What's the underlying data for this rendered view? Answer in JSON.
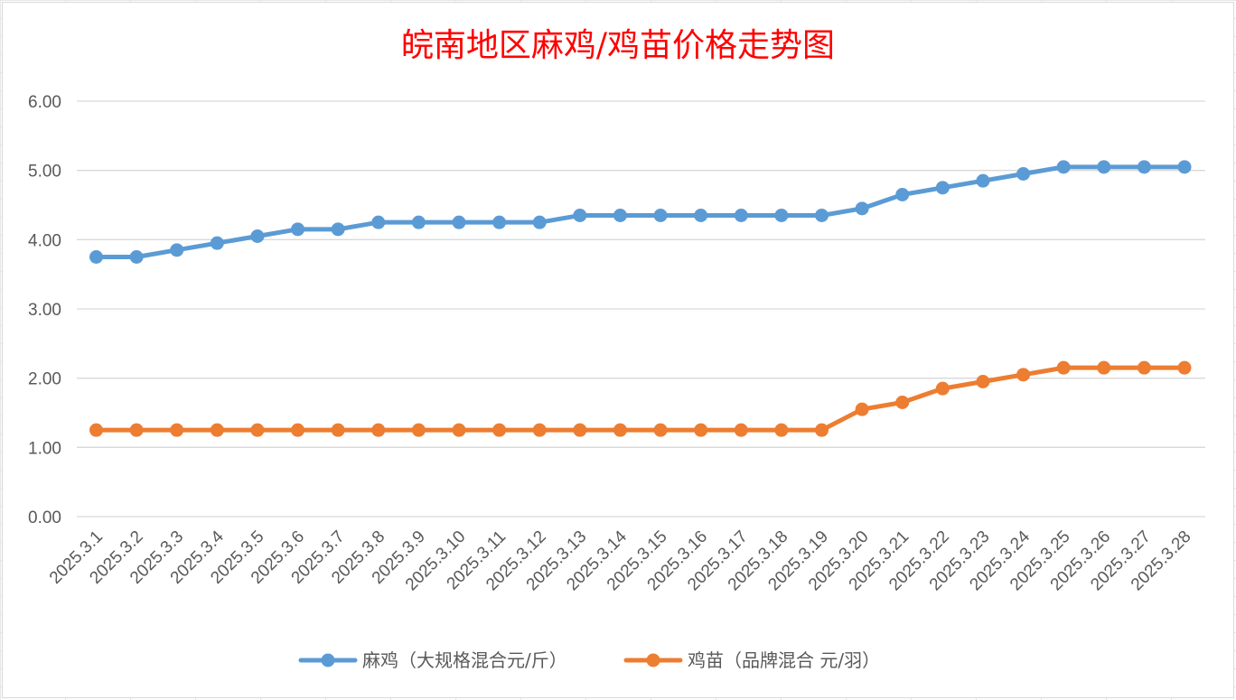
{
  "chart_data": {
    "type": "line",
    "title": "皖南地区麻鸡/鸡苗价格走势图",
    "xlabel": "",
    "ylabel": "",
    "ylim": [
      0,
      6
    ],
    "yticks": [
      "0.00",
      "1.00",
      "2.00",
      "3.00",
      "4.00",
      "5.00",
      "6.00"
    ],
    "grid": true,
    "legend_position": "bottom",
    "categories": [
      "2025.3.1",
      "2025.3.2",
      "2025.3.3",
      "2025.3.4",
      "2025.3.5",
      "2025.3.6",
      "2025.3.7",
      "2025.3.8",
      "2025.3.9",
      "2025.3.10",
      "2025.3.11",
      "2025.3.12",
      "2025.3.13",
      "2025.3.14",
      "2025.3.15",
      "2025.3.16",
      "2025.3.17",
      "2025.3.18",
      "2025.3.19",
      "2025.3.20",
      "2025.3.21",
      "2025.3.22",
      "2025.3.23",
      "2025.3.24",
      "2025.3.25",
      "2025.3.26",
      "2025.3.27",
      "2025.3.28"
    ],
    "series": [
      {
        "name": "麻鸡（大规格混合元/斤）",
        "color": "#5b9bd5",
        "values": [
          3.75,
          3.75,
          3.85,
          3.95,
          4.05,
          4.15,
          4.15,
          4.25,
          4.25,
          4.25,
          4.25,
          4.25,
          4.35,
          4.35,
          4.35,
          4.35,
          4.35,
          4.35,
          4.35,
          4.45,
          4.65,
          4.75,
          4.85,
          4.95,
          5.05,
          5.05,
          5.05,
          5.05
        ]
      },
      {
        "name": "鸡苗（品牌混合 元/羽）",
        "color": "#ed7d31",
        "values": [
          1.25,
          1.25,
          1.25,
          1.25,
          1.25,
          1.25,
          1.25,
          1.25,
          1.25,
          1.25,
          1.25,
          1.25,
          1.25,
          1.25,
          1.25,
          1.25,
          1.25,
          1.25,
          1.25,
          1.55,
          1.65,
          1.85,
          1.95,
          2.05,
          2.15,
          2.15,
          2.15,
          2.15
        ]
      }
    ]
  }
}
